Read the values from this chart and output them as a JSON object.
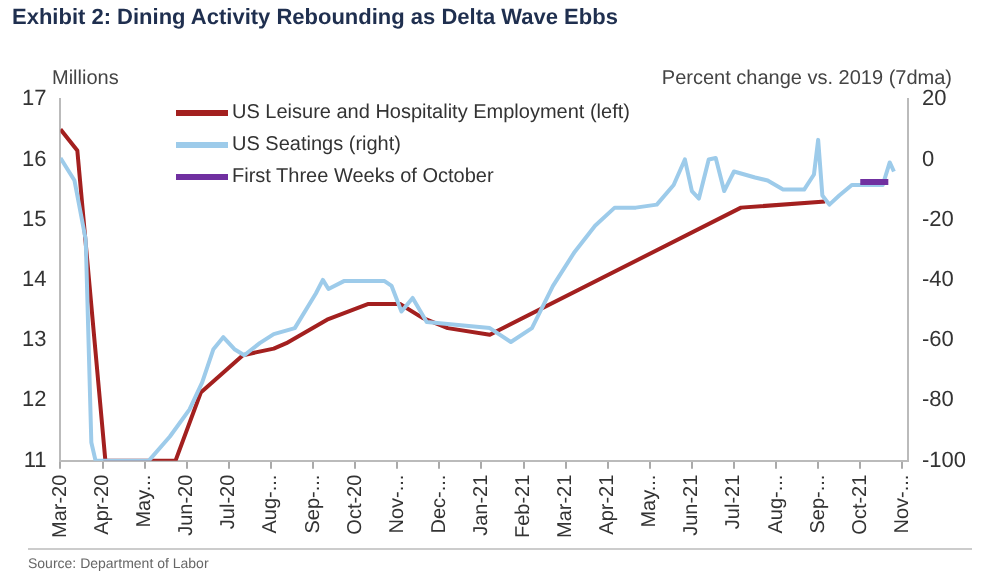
{
  "chart_data": {
    "type": "line",
    "title": "Exhibit 2: Dining Activity Rebounding as Delta Wave Ebbs",
    "ylabel": "Millions",
    "y2label": "Percent change vs. 2019 (7dma)",
    "annotations": [
      "Source: Department of Labor"
    ],
    "legend": "top left",
    "xlim": [
      "2020-03-01",
      "2021-11-05"
    ],
    "xticks": [
      {
        "value": "2020-03",
        "label": "Mar-20"
      },
      {
        "value": "2020-04",
        "label": "Apr-20"
      },
      {
        "value": "2020-05",
        "label": "May..."
      },
      {
        "value": "2020-06",
        "label": "Jun-20"
      },
      {
        "value": "2020-07",
        "label": "Jul-20"
      },
      {
        "value": "2020-08",
        "label": "Aug-..."
      },
      {
        "value": "2020-09",
        "label": "Sep-..."
      },
      {
        "value": "2020-10",
        "label": "Oct-20"
      },
      {
        "value": "2020-11",
        "label": "Nov-..."
      },
      {
        "value": "2020-12",
        "label": "Dec-..."
      },
      {
        "value": "2021-01",
        "label": "Jan-21"
      },
      {
        "value": "2021-02",
        "label": "Feb-21"
      },
      {
        "value": "2021-03",
        "label": "Mar-21"
      },
      {
        "value": "2021-04",
        "label": "Apr-21"
      },
      {
        "value": "2021-05",
        "label": "May..."
      },
      {
        "value": "2021-06",
        "label": "Jun-21"
      },
      {
        "value": "2021-07",
        "label": "Jul-21"
      },
      {
        "value": "2021-08",
        "label": "Aug-..."
      },
      {
        "value": "2021-09",
        "label": "Sep-..."
      },
      {
        "value": "2021-10",
        "label": "Oct-21"
      },
      {
        "value": "2021-11",
        "label": "Nov-..."
      }
    ],
    "ylim": [
      11,
      17
    ],
    "yticks": [
      11,
      12,
      13,
      14,
      15,
      16,
      17
    ],
    "y2lim": [
      -100,
      20
    ],
    "y2ticks": [
      -100,
      -80,
      -60,
      -40,
      -20,
      0,
      20
    ],
    "series": [
      {
        "name": "US Leisure and Hospitality Employment (left)",
        "color": "#a3201f",
        "x": [
          "2020-03-01",
          "2020-03-13",
          "2020-04-03",
          "2020-05-23",
          "2020-06-11",
          "2020-07-11",
          "2020-08-03",
          "2020-08-12",
          "2020-09-11",
          "2020-10-10",
          "2020-11-03",
          "2020-11-19",
          "2020-12-07",
          "2021-01-07",
          "2021-07-06",
          "2021-09-06"
        ],
        "values": [
          16.5,
          16.15,
          11,
          11,
          12.13,
          12.75,
          12.86,
          12.95,
          13.34,
          13.6,
          13.6,
          13.37,
          13.2,
          13.09,
          15.2,
          15.3
        ]
      },
      {
        "name": "US Seatings (right)",
        "color": "#9dcbea",
        "axis": "y2",
        "x": [
          "2020-03-01",
          "2020-03-11",
          "2020-03-19",
          "2020-03-23",
          "2020-03-26",
          "2020-05-04",
          "2020-05-19",
          "2020-06-03",
          "2020-06-12",
          "2020-06-20",
          "2020-06-27",
          "2020-07-05",
          "2020-07-12",
          "2020-07-23",
          "2020-08-03",
          "2020-08-18",
          "2020-09-03",
          "2020-09-08",
          "2020-09-12",
          "2020-09-23",
          "2020-10-22",
          "2020-10-27",
          "2020-11-04",
          "2020-11-12",
          "2020-11-22",
          "2021-01-07",
          "2021-01-22",
          "2021-02-07",
          "2021-02-22",
          "2021-03-07",
          "2021-03-22",
          "2021-04-06",
          "2021-04-21",
          "2021-05-06",
          "2021-05-18",
          "2021-05-26",
          "2021-06-01",
          "2021-06-06",
          "2021-06-13",
          "2021-06-18",
          "2021-06-24",
          "2021-07-01",
          "2021-07-16",
          "2021-07-25",
          "2021-08-06",
          "2021-08-21",
          "2021-08-28",
          "2021-09-01",
          "2021-09-04",
          "2021-09-09",
          "2021-09-16",
          "2021-09-25",
          "2021-10-10",
          "2021-10-17",
          "2021-10-22",
          "2021-10-25"
        ],
        "values": [
          0.5,
          -7,
          -26.6,
          -94,
          -100,
          -100,
          -92,
          -83,
          -74,
          -63,
          -59,
          -63,
          -65,
          -61,
          -58,
          -56,
          -44.5,
          -40,
          -43,
          -40.4,
          -40.4,
          -42,
          -50.5,
          -46,
          -54,
          -56,
          -60.6,
          -56,
          -42,
          -31,
          -22,
          -16,
          -16,
          -15,
          -8.5,
          0,
          -10.5,
          -13,
          0,
          0.5,
          -10.5,
          -4,
          -6,
          -7,
          -10,
          -10,
          -5,
          6.5,
          -12,
          -15,
          -12,
          -8.5,
          -8.5,
          -8.5,
          -1,
          -4
        ]
      },
      {
        "name": "First Three Weeks of October",
        "color": "#7030a0",
        "axis": "y2",
        "x": [
          "2021-10-01",
          "2021-10-21"
        ],
        "values": [
          -7.5,
          -7.5
        ]
      }
    ]
  }
}
